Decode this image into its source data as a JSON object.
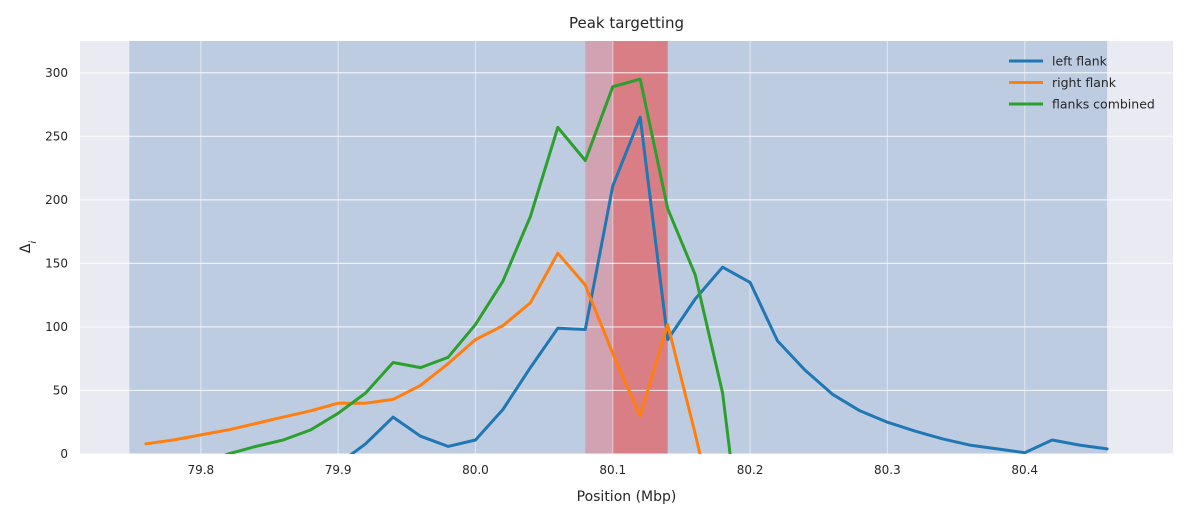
{
  "chart_data": {
    "type": "line",
    "title": "Peak targetting",
    "xlabel": "Position (Mbp)",
    "ylabel": "Δi",
    "xlim": [
      79.712,
      80.508
    ],
    "ylim": [
      0,
      325
    ],
    "xticks": [
      79.8,
      79.9,
      80.0,
      80.1,
      80.2,
      80.3,
      80.4
    ],
    "xtick_labels": [
      "79.8",
      "79.9",
      "80.0",
      "80.1",
      "80.2",
      "80.3",
      "80.4"
    ],
    "yticks": [
      0,
      50,
      100,
      150,
      200,
      250,
      300
    ],
    "ytick_labels": [
      "0",
      "50",
      "100",
      "150",
      "200",
      "250",
      "300"
    ],
    "grid": true,
    "legend_position": "top-right",
    "shaded_regions": [
      {
        "x0": 79.748,
        "x1": 80.46,
        "color": "#3a74b4",
        "opacity": 0.25
      },
      {
        "x0": 80.08,
        "x1": 80.14,
        "color": "#e0808a",
        "opacity": 0.55
      },
      {
        "x0": 80.1,
        "x1": 80.14,
        "color": "#e06060",
        "opacity": 0.55
      }
    ],
    "series": [
      {
        "name": "left flank",
        "color": "#1f77b4",
        "x": [
          79.9,
          79.92,
          79.94,
          79.96,
          79.98,
          80.0,
          80.02,
          80.04,
          80.06,
          80.08,
          80.1,
          80.12,
          80.14,
          80.16,
          80.18,
          80.2,
          80.22,
          80.24,
          80.26,
          80.28,
          80.3,
          80.32,
          80.34,
          80.36,
          80.38,
          80.4,
          80.42,
          80.44,
          80.46
        ],
        "y": [
          -8,
          8,
          29,
          14,
          6,
          11,
          35,
          68,
          99,
          98,
          211,
          265,
          90,
          122,
          147,
          135,
          89,
          66,
          47,
          34,
          25,
          18,
          12,
          7,
          4,
          1,
          11,
          7,
          4
        ]
      },
      {
        "name": "right flank",
        "color": "#ff7f0e",
        "x": [
          79.76,
          79.78,
          79.8,
          79.82,
          79.84,
          79.86,
          79.88,
          79.9,
          79.92,
          79.94,
          79.96,
          79.98,
          80.0,
          80.02,
          80.04,
          80.06,
          80.08,
          80.1,
          80.12,
          80.14,
          80.16,
          80.17
        ],
        "y": [
          8,
          11,
          15,
          19,
          24,
          29,
          34,
          40,
          40,
          43,
          54,
          71,
          90,
          101,
          119,
          158,
          133,
          79,
          30,
          102,
          16,
          -30
        ]
      },
      {
        "name": "flanks combined",
        "color": "#2ca02c",
        "x": [
          79.8,
          79.82,
          79.84,
          79.86,
          79.88,
          79.9,
          79.92,
          79.94,
          79.96,
          79.98,
          80.0,
          80.02,
          80.04,
          80.06,
          80.08,
          80.1,
          80.12,
          80.14,
          80.16,
          80.18,
          80.19
        ],
        "y": [
          -8,
          0,
          6,
          11,
          19,
          32,
          48,
          72,
          68,
          76,
          102,
          136,
          187,
          257,
          231,
          289,
          295,
          193,
          141,
          48,
          -40
        ]
      }
    ]
  }
}
